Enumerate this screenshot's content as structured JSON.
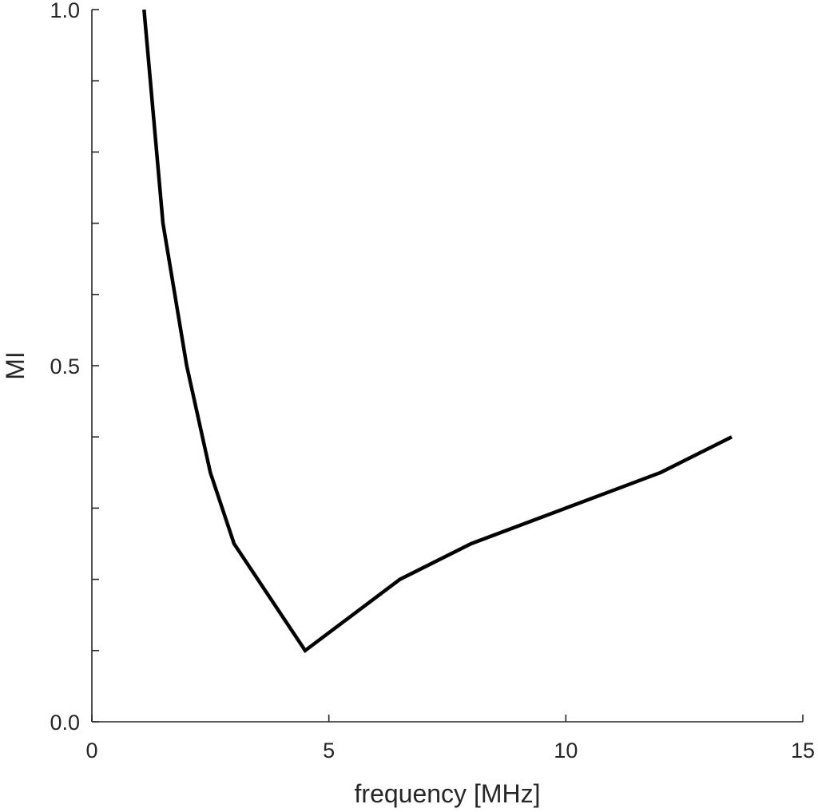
{
  "chart_data": {
    "type": "line",
    "title": "",
    "xlabel": "frequency [MHz]",
    "ylabel": "MI",
    "xlim": [
      0,
      15
    ],
    "ylim": [
      0,
      1
    ],
    "x_ticks": [
      0,
      5,
      10,
      15
    ],
    "x_tick_labels": [
      "0",
      "5",
      "10",
      "15"
    ],
    "y_ticks": [
      0,
      0.1,
      0.2,
      0.3,
      0.4,
      0.5,
      0.6,
      0.7,
      0.8,
      0.9,
      1.0
    ],
    "y_tick_labels": [
      "0.0",
      "",
      "",
      "",
      "",
      "0.5",
      "",
      "",
      "",
      "",
      "1.0"
    ],
    "grid": false,
    "legend": "none",
    "series": [
      {
        "color": "#000000",
        "x": [
          1.1,
          1.5,
          2.0,
          2.5,
          3.0,
          4.5,
          6.5,
          8.0,
          10.0,
          12.0,
          13.5
        ],
        "y": [
          1.0,
          0.7,
          0.5,
          0.35,
          0.25,
          0.1,
          0.2,
          0.25,
          0.3,
          0.35,
          0.4
        ]
      }
    ]
  }
}
